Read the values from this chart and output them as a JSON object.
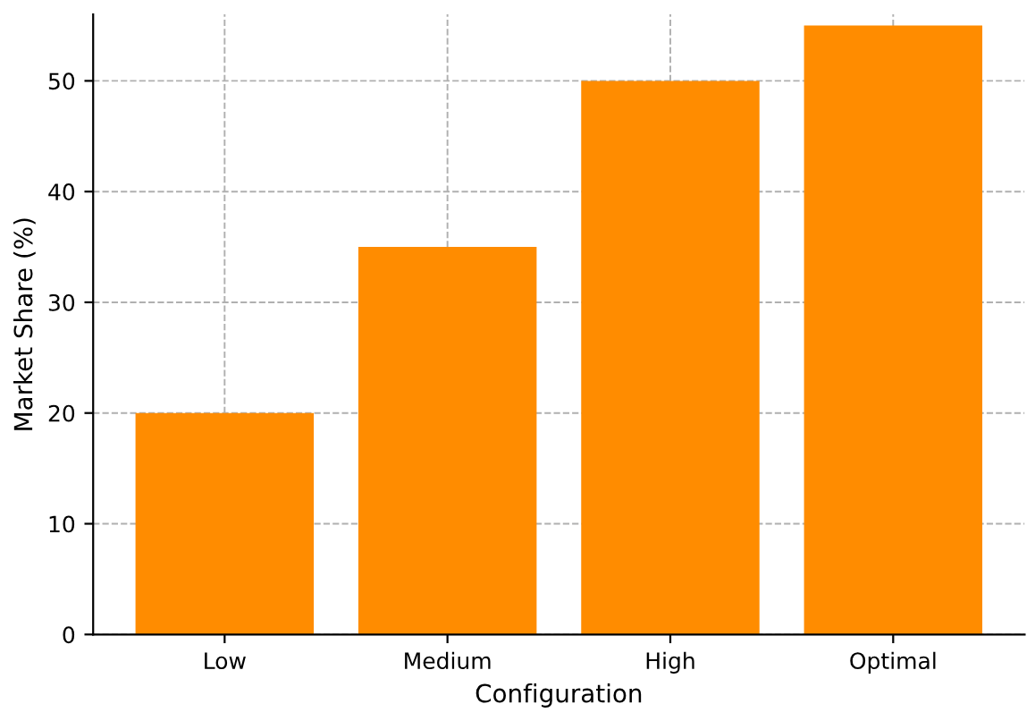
{
  "chart_data": {
    "type": "bar",
    "xlabel": "Configuration",
    "ylabel": "Market Share (%)",
    "categories": [
      "Low",
      "Medium",
      "High",
      "Optimal"
    ],
    "values": [
      20,
      35,
      50,
      55
    ],
    "color": "#ff8c00",
    "ylim": [
      0,
      56
    ],
    "yticks": [
      0,
      10,
      20,
      30,
      40,
      50
    ],
    "grid": true
  }
}
